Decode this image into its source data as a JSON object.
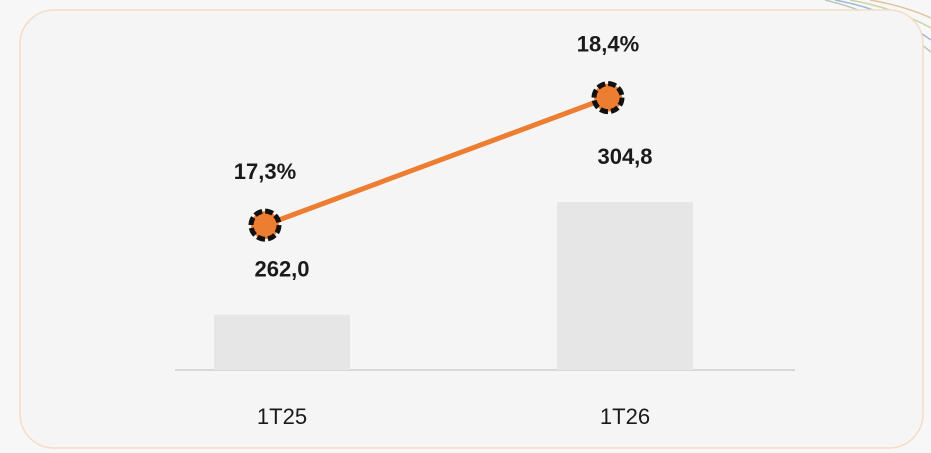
{
  "chart_data": {
    "type": "bar",
    "categories": [
      "1T25",
      "1T26"
    ],
    "series": [
      {
        "type": "bar",
        "color": "#e6e6e6",
        "values": [
          262.0,
          304.8
        ],
        "value_labels": [
          "262,0",
          "304,8"
        ]
      },
      {
        "type": "line",
        "axis": "y2",
        "color": "#ed7d31",
        "values": [
          17.3,
          18.4
        ],
        "value_labels": [
          "17,3%",
          "18,4%"
        ]
      }
    ],
    "ylim": [
      241,
      374
    ],
    "y2lim": [
      16.05,
      19.07
    ]
  }
}
